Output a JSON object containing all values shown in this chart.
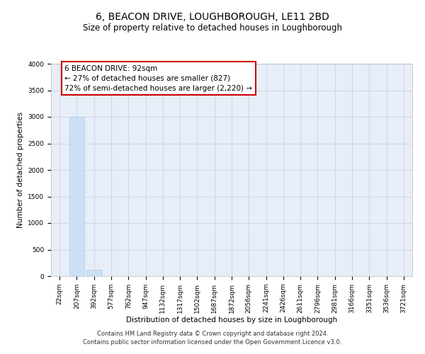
{
  "title": "6, BEACON DRIVE, LOUGHBOROUGH, LE11 2BD",
  "subtitle": "Size of property relative to detached houses in Loughborough",
  "xlabel": "Distribution of detached houses by size in Loughborough",
  "ylabel": "Number of detached properties",
  "footer": "Contains HM Land Registry data © Crown copyright and database right 2024.\nContains public sector information licensed under the Open Government Licence v3.0.",
  "bar_labels": [
    "22sqm",
    "207sqm",
    "392sqm",
    "577sqm",
    "762sqm",
    "947sqm",
    "1132sqm",
    "1317sqm",
    "1502sqm",
    "1687sqm",
    "1872sqm",
    "2056sqm",
    "2241sqm",
    "2426sqm",
    "2611sqm",
    "2796sqm",
    "2981sqm",
    "3166sqm",
    "3351sqm",
    "3536sqm",
    "3721sqm"
  ],
  "bar_values": [
    0,
    3000,
    120,
    5,
    3,
    2,
    2,
    1,
    1,
    1,
    1,
    1,
    1,
    1,
    1,
    0,
    0,
    0,
    0,
    0,
    0
  ],
  "bar_color": "#cce0f5",
  "bar_edge_color": "#aaccee",
  "grid_color": "#d0d8e8",
  "bg_color": "#e8eef8",
  "ylim": [
    0,
    4000
  ],
  "yticks": [
    0,
    500,
    1000,
    1500,
    2000,
    2500,
    3000,
    3500,
    4000
  ],
  "annotation_box_text": "6 BEACON DRIVE: 92sqm\n← 27% of detached houses are smaller (827)\n72% of semi-detached houses are larger (2,220) →",
  "annotation_box_color": "#cc0000",
  "annotation_box_bg": "#ffffff",
  "title_fontsize": 10,
  "subtitle_fontsize": 8.5,
  "axis_label_fontsize": 7.5,
  "tick_fontsize": 6.5,
  "annotation_fontsize": 7.5,
  "footer_fontsize": 6.0
}
